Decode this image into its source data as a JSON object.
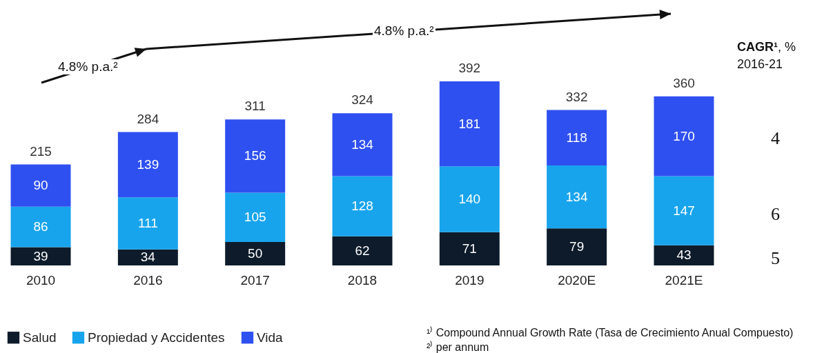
{
  "chart_data": {
    "type": "bar",
    "stacked": true,
    "data_labels": true,
    "legend": "bottom left",
    "categories": [
      "2010",
      "2016",
      "2017",
      "2018",
      "2019",
      "2020E",
      "2021E"
    ],
    "series": [
      {
        "name": "Salud",
        "color": "#0d1b2a",
        "values": [
          39,
          34,
          50,
          62,
          71,
          79,
          43
        ]
      },
      {
        "name": "Propiedad y Accidentes",
        "color": "#18a4ec",
        "values": [
          86,
          111,
          105,
          128,
          140,
          134,
          147
        ]
      },
      {
        "name": "Vida",
        "color": "#2f50f0",
        "values": [
          90,
          139,
          156,
          134,
          181,
          118,
          170
        ]
      }
    ],
    "totals": [
      "215",
      "284",
      "311",
      "324",
      "392",
      "332",
      "360"
    ],
    "annotations": [
      "4.8% p.a.²",
      "4.8% p.a.²",
      "CAGR¹, %",
      "2016-21",
      "4",
      "6",
      "5",
      "¹⁾ Compound Annual Growth Rate (Tasa de Crecimiento Anual Compuesto)",
      "²⁾ per annum"
    ]
  }
}
